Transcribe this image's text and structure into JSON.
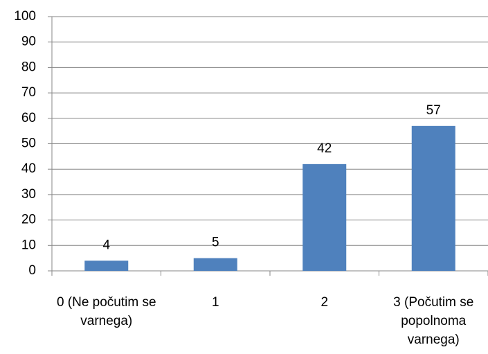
{
  "chart_data": {
    "type": "bar",
    "categories": [
      "0 (Ne počutim se varnega)",
      "1",
      "2",
      "3 (Počutim se popolnoma varnega)"
    ],
    "values": [
      4,
      5,
      42,
      57
    ],
    "color": "#4f81bd",
    "ylim": [
      0,
      100
    ],
    "yticks": [
      0,
      10,
      20,
      30,
      40,
      50,
      60,
      70,
      80,
      90,
      100
    ],
    "grid": true
  }
}
